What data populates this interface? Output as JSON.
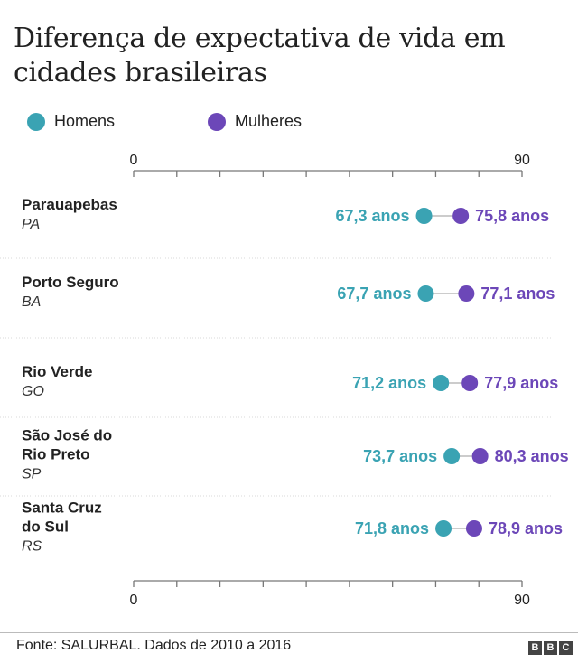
{
  "title": "Diferença de expectativa de vida em cidades brasileiras",
  "legend": [
    {
      "label": "Homens",
      "color": "#3aa3b3"
    },
    {
      "label": "Mulheres",
      "color": "#6c47b8"
    }
  ],
  "chart_data": {
    "type": "dot",
    "xlim": [
      0,
      90
    ],
    "tick_labels": [
      "0",
      "90"
    ],
    "categories": [
      {
        "name": "Parauapebas",
        "name_lines": [
          "Parauapebas"
        ],
        "state": "PA"
      },
      {
        "name": "Porto Seguro",
        "name_lines": [
          "Porto Seguro"
        ],
        "state": "BA"
      },
      {
        "name": "Rio Verde",
        "name_lines": [
          "Rio Verde"
        ],
        "state": "GO"
      },
      {
        "name": "São José do Rio Preto",
        "name_lines": [
          "São José do",
          "Rio Preto"
        ],
        "state": "SP"
      },
      {
        "name": "Santa Cruz do Sul",
        "name_lines": [
          "Santa Cruz",
          "do Sul"
        ],
        "state": "RS"
      }
    ],
    "series": [
      {
        "name": "Homens",
        "color": "#3aa3b3",
        "values": [
          67.3,
          67.7,
          71.2,
          73.7,
          71.8
        ],
        "labels": [
          "67,3 anos",
          "67,7 anos",
          "71,2 anos",
          "73,7 anos",
          "71,8 anos"
        ]
      },
      {
        "name": "Mulheres",
        "color": "#6c47b8",
        "values": [
          75.8,
          77.1,
          77.9,
          80.3,
          78.9
        ],
        "labels": [
          "75,8 anos",
          "77,1 anos",
          "77,9 anos",
          "80,3 anos",
          "78,9 anos"
        ]
      }
    ]
  },
  "footer": {
    "source": "Fonte: SALURBAL. Dados de 2010 a 2016",
    "logo_letters": [
      "B",
      "B",
      "C"
    ]
  }
}
